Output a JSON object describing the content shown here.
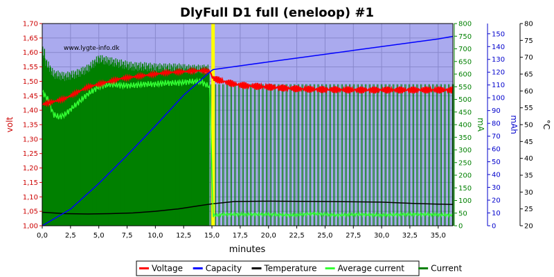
{
  "chart_data": {
    "type": "line",
    "title": "DlyFull D1 full (eneloop) #1",
    "watermark": "www.lygte-info.dk",
    "xlabel": "minutes",
    "x_ticks": [
      "0,0",
      "2,5",
      "5,0",
      "7,5",
      "10,0",
      "12,5",
      "15,0",
      "17,5",
      "20,0",
      "22,5",
      "25,0",
      "27,5",
      "30,0",
      "32,5",
      "35,0"
    ],
    "xlim": [
      0,
      36.3
    ],
    "axes": {
      "volt": {
        "label": "volt",
        "color": "#cc0000",
        "min": 1.0,
        "max": 1.7,
        "ticks": [
          "1,00",
          "1,05",
          "1,10",
          "1,15",
          "1,20",
          "1,25",
          "1,30",
          "1,35",
          "1,40",
          "1,45",
          "1,50",
          "1,55",
          "1,60",
          "1,65",
          "1,70"
        ]
      },
      "mA": {
        "label": "mA",
        "color": "#008000",
        "min": 0,
        "max": 800,
        "ticks": [
          "0",
          "50",
          "100",
          "150",
          "200",
          "250",
          "300",
          "350",
          "400",
          "450",
          "500",
          "550",
          "600",
          "650",
          "700",
          "750",
          "800"
        ]
      },
      "mAh": {
        "label": "mAh",
        "color": "#0000cc",
        "min": 0,
        "max": 158,
        "ticks": [
          "0",
          "10",
          "20",
          "30",
          "40",
          "50",
          "60",
          "70",
          "80",
          "90",
          "100",
          "110",
          "120",
          "130",
          "140",
          "150"
        ]
      },
      "temp": {
        "label": "°C",
        "color": "#000000",
        "min": 20,
        "max": 80,
        "ticks": [
          "20",
          "25",
          "30",
          "35",
          "40",
          "45",
          "50",
          "55",
          "60",
          "65",
          "70",
          "75",
          "80"
        ]
      }
    },
    "marker_x": 15.1,
    "marker_color": "#ffff00",
    "series": [
      {
        "name": "Voltage",
        "color": "#ff0000",
        "axis": "volt",
        "x": [
          0,
          1,
          2,
          3,
          4,
          5,
          6,
          7,
          8,
          9,
          10,
          11,
          12,
          13,
          14,
          14.8,
          15.1,
          16,
          17,
          18,
          20,
          22,
          24,
          26,
          28,
          30,
          32,
          34,
          36.3
        ],
        "y": [
          1.42,
          1.43,
          1.44,
          1.46,
          1.48,
          1.49,
          1.5,
          1.51,
          1.515,
          1.52,
          1.525,
          1.53,
          1.532,
          1.535,
          1.537,
          1.535,
          1.51,
          1.5,
          1.49,
          1.485,
          1.48,
          1.475,
          1.472,
          1.471,
          1.47,
          1.47,
          1.47,
          1.47,
          1.47
        ]
      },
      {
        "name": "Capacity",
        "color": "#0000ff",
        "axis": "mAh",
        "x": [
          0,
          2.5,
          5,
          7.5,
          10,
          12.5,
          14.8,
          15.1,
          17.5,
          20,
          22.5,
          25,
          27.5,
          30,
          32.5,
          35,
          36.3
        ],
        "y": [
          0,
          13,
          33,
          55,
          78,
          102,
          120,
          122,
          125,
          128,
          131,
          134,
          137,
          140,
          143,
          146,
          148
        ]
      },
      {
        "name": "Temperature",
        "color": "#000000",
        "axis": "temp",
        "x": [
          0,
          2,
          4,
          6,
          8,
          10,
          12,
          14,
          15,
          17,
          20,
          25,
          30,
          33,
          36.3
        ],
        "y": [
          24.0,
          23.6,
          23.5,
          23.6,
          23.8,
          24.3,
          25.0,
          26.0,
          26.5,
          27.2,
          27.3,
          27.2,
          27.0,
          26.6,
          26.3
        ]
      },
      {
        "name": "Average current",
        "color": "#33ff33",
        "axis": "mA",
        "x": [
          0,
          0.5,
          1,
          1.5,
          2,
          2.5,
          3,
          4,
          5,
          6,
          7,
          8,
          9,
          10,
          11,
          12,
          13,
          14,
          14.8,
          15.1,
          16,
          18,
          20,
          22,
          24,
          26,
          28,
          30,
          32,
          34,
          36.3
        ],
        "y": [
          530,
          500,
          440,
          430,
          440,
          460,
          480,
          520,
          550,
          560,
          555,
          555,
          560,
          560,
          565,
          565,
          570,
          570,
          550,
          40,
          45,
          45,
          45,
          42,
          48,
          42,
          45,
          42,
          45,
          45,
          42
        ]
      },
      {
        "name": "Current",
        "color": "#008000",
        "axis": "mA",
        "x": [
          0,
          0.3,
          1,
          2,
          3,
          4,
          5,
          6,
          7,
          8,
          9,
          10,
          11,
          12,
          13,
          14,
          14.8,
          15.1,
          36.3
        ],
        "y": [
          700,
          650,
          600,
          590,
          600,
          620,
          660,
          650,
          640,
          630,
          630,
          625,
          625,
          625,
          620,
          620,
          620,
          0,
          0
        ],
        "pulse_period_min": 0.35,
        "pulse_high_mA": 560,
        "pulse_low_mA": 0,
        "band_low_mA": 0
      }
    ],
    "legend": [
      "Voltage",
      "Capacity",
      "Temperature",
      "Average current",
      "Current"
    ],
    "legend_position": "bottom"
  }
}
